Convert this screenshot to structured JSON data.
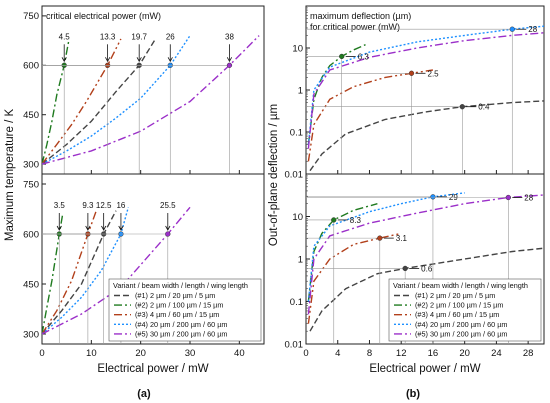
{
  "figure_labels": {
    "a": "(a)",
    "b": "(b)"
  },
  "colors": {
    "v1": "#444444",
    "v2": "#1f7a1f",
    "v3": "#b2401b",
    "v4": "#1e90ff",
    "v5": "#9b2fc9"
  },
  "legend": {
    "title": "Variant / beam width / length / wing length",
    "entries": [
      {
        "id": "v1",
        "label": "(#1)   2 µm /  20 µm /  5 µm",
        "dash": "6,3"
      },
      {
        "id": "v2",
        "label": "(#2)   2 µm / 100 µm / 15 µm",
        "dash": "8,3,2,3"
      },
      {
        "id": "v3",
        "label": "(#3)   4 µm /  60 µm / 15 µm",
        "dash": "8,3,2,3,2,3"
      },
      {
        "id": "v4",
        "label": "(#4) 20 µm / 200 µm / 60 µm",
        "dash": "2,2"
      },
      {
        "id": "v5",
        "label": "(#5) 30 µm / 200 µm / 60 µm",
        "dash": "8,3,2,3"
      }
    ]
  },
  "chart_data": [
    {
      "type": "line",
      "panel": "a-top",
      "title": "critical electrical power (mW)",
      "xlabel": "",
      "ylabel": "Maximum temperature / K",
      "xlim": [
        0,
        45
      ],
      "ylim": [
        270,
        780
      ],
      "yticks": [
        300,
        450,
        600,
        750
      ],
      "xticks": [
        0,
        10,
        20,
        30,
        40
      ],
      "series": [
        {
          "name": "(#1)",
          "x": [
            0,
            5,
            10,
            15,
            19.7,
            23
          ],
          "y": [
            300,
            360,
            430,
            520,
            600,
            680
          ]
        },
        {
          "name": "(#2)",
          "x": [
            0,
            1,
            2,
            3,
            4.5,
            5.5
          ],
          "y": [
            300,
            360,
            430,
            510,
            600,
            680
          ]
        },
        {
          "name": "(#3)",
          "x": [
            0,
            3,
            6,
            9,
            13.3,
            16
          ],
          "y": [
            300,
            360,
            420,
            490,
            600,
            680
          ]
        },
        {
          "name": "(#4)",
          "x": [
            0,
            5,
            10,
            15,
            20,
            26,
            30
          ],
          "y": [
            300,
            340,
            385,
            440,
            500,
            600,
            690
          ]
        },
        {
          "name": "(#5)",
          "x": [
            0,
            10,
            20,
            30,
            38,
            44
          ],
          "y": [
            300,
            340,
            400,
            490,
            600,
            690
          ]
        }
      ],
      "annotations": [
        {
          "series": "(#2)",
          "x": 4.5,
          "y": 600,
          "label": "4.5"
        },
        {
          "series": "(#3)",
          "x": 13.3,
          "y": 600,
          "label": "13.3"
        },
        {
          "series": "(#1)",
          "x": 19.7,
          "y": 600,
          "label": "19.7"
        },
        {
          "series": "(#4)",
          "x": 26,
          "y": 600,
          "label": "26"
        },
        {
          "series": "(#5)",
          "x": 38,
          "y": 600,
          "label": "38"
        }
      ]
    },
    {
      "type": "line",
      "panel": "a-bottom",
      "xlabel": "Electrical power / mW",
      "ylabel": "Maximum temperature / K",
      "xlim": [
        0,
        45
      ],
      "ylim": [
        270,
        780
      ],
      "yticks": [
        300,
        450,
        600,
        750
      ],
      "xticks": [
        0,
        10,
        20,
        30,
        40
      ],
      "series": [
        {
          "name": "(#1)",
          "x": [
            0,
            4,
            8,
            12.5,
            15
          ],
          "y": [
            300,
            370,
            450,
            600,
            670
          ]
        },
        {
          "name": "(#2)",
          "x": [
            0,
            1,
            2,
            3.5,
            4.2
          ],
          "y": [
            300,
            380,
            460,
            600,
            660
          ]
        },
        {
          "name": "(#3)",
          "x": [
            0,
            3,
            6,
            9.3,
            11
          ],
          "y": [
            300,
            370,
            460,
            600,
            670
          ]
        },
        {
          "name": "(#4)",
          "x": [
            0,
            4,
            8,
            12,
            16,
            17.5
          ],
          "y": [
            300,
            350,
            410,
            490,
            600,
            680
          ]
        },
        {
          "name": "(#5)",
          "x": [
            0,
            8,
            16,
            25.5,
            30
          ],
          "y": [
            300,
            360,
            440,
            600,
            680
          ]
        }
      ],
      "annotations": [
        {
          "series": "(#2)",
          "x": 3.5,
          "y": 600,
          "label": "3.5"
        },
        {
          "series": "(#3)",
          "x": 9.3,
          "y": 600,
          "label": "9.3"
        },
        {
          "series": "(#1)",
          "x": 12.5,
          "y": 600,
          "label": "12.5"
        },
        {
          "series": "(#4)",
          "x": 16,
          "y": 600,
          "label": "16"
        },
        {
          "series": "(#5)",
          "x": 25.5,
          "y": 600,
          "label": "25.5"
        }
      ]
    },
    {
      "type": "line",
      "panel": "b-top",
      "title": "maximum deflection (µm)\nfor critical power (mW)",
      "xlabel": "",
      "ylabel": "Out-of-plane deflection / µm",
      "xlim": [
        0,
        30
      ],
      "ylim": [
        0.01,
        100
      ],
      "yscale": "log",
      "yticks": [
        0.01,
        0.1,
        1,
        10
      ],
      "xticks": [
        0,
        4,
        8,
        12,
        16,
        20,
        24,
        28
      ],
      "series": [
        {
          "name": "(#1)",
          "x": [
            0.5,
            2,
            5,
            10,
            15,
            19.7,
            26,
            30
          ],
          "y": [
            0.012,
            0.03,
            0.09,
            0.2,
            0.3,
            0.4,
            0.5,
            0.55
          ]
        },
        {
          "name": "(#2)",
          "x": [
            0.3,
            1,
            2,
            3,
            4.5,
            6,
            7.5
          ],
          "y": [
            0.05,
            0.6,
            2,
            3.8,
            6.3,
            9,
            12
          ]
        },
        {
          "name": "(#3)",
          "x": [
            0.3,
            1,
            3,
            6,
            10,
            13.3,
            16
          ],
          "y": [
            0.02,
            0.15,
            0.6,
            1.2,
            2,
            2.5,
            3
          ]
        },
        {
          "name": "(#4)",
          "x": [
            0.3,
            1,
            3,
            8,
            14,
            20,
            26,
            30
          ],
          "y": [
            0.05,
            1,
            3.5,
            8,
            14,
            20,
            28,
            33
          ]
        },
        {
          "name": "(#5)",
          "x": [
            0.3,
            1,
            3,
            8,
            14,
            20,
            26,
            30
          ],
          "y": [
            0.04,
            0.8,
            3,
            6,
            10,
            15,
            20,
            23
          ]
        }
      ],
      "annotations": [
        {
          "series": "(#4)",
          "x": 26,
          "y": 28,
          "label": "28"
        },
        {
          "series": "(#2)",
          "x": 4.5,
          "y": 6.3,
          "label": "6.3"
        },
        {
          "series": "(#3)",
          "x": 13.3,
          "y": 2.5,
          "label": "2.5"
        },
        {
          "series": "(#1)",
          "x": 19.7,
          "y": 0.4,
          "label": "0.4"
        }
      ]
    },
    {
      "type": "line",
      "panel": "b-bottom",
      "xlabel": "Electrical power / mW",
      "ylabel": "Out-of-plane deflection / µm",
      "xlim": [
        0,
        30
      ],
      "ylim": [
        0.01,
        100
      ],
      "yscale": "log",
      "yticks": [
        0.01,
        0.1,
        1,
        10
      ],
      "xticks": [
        0,
        4,
        8,
        12,
        16,
        20,
        24,
        28
      ],
      "series": [
        {
          "name": "(#1)",
          "x": [
            0.5,
            2,
            5,
            9,
            12.5,
            20,
            26,
            30
          ],
          "y": [
            0.02,
            0.06,
            0.2,
            0.45,
            0.6,
            1.0,
            1.5,
            1.8
          ]
        },
        {
          "name": "(#2)",
          "x": [
            0.3,
            1,
            2,
            3.5,
            6,
            9
          ],
          "y": [
            0.1,
            1.5,
            4,
            8.3,
            14,
            20
          ]
        },
        {
          "name": "(#3)",
          "x": [
            0.3,
            1,
            3,
            6,
            9.3,
            12
          ],
          "y": [
            0.03,
            0.3,
            1,
            2.2,
            3.1,
            4
          ]
        },
        {
          "name": "(#4)",
          "x": [
            0.3,
            1,
            3,
            8,
            12,
            16,
            20
          ],
          "y": [
            0.1,
            2,
            6,
            13,
            20,
            29,
            36
          ]
        },
        {
          "name": "(#5)",
          "x": [
            0.3,
            1,
            3,
            8,
            14,
            20,
            25.5,
            30
          ],
          "y": [
            0.05,
            1,
            3.5,
            7,
            12,
            20,
            28,
            32
          ]
        }
      ],
      "annotations": [
        {
          "series": "(#4)",
          "x": 16,
          "y": 29,
          "label": "29"
        },
        {
          "series": "(#5)",
          "x": 25.5,
          "y": 28,
          "label": "28"
        },
        {
          "series": "(#2)",
          "x": 3.5,
          "y": 8.3,
          "label": "8.3"
        },
        {
          "series": "(#3)",
          "x": 9.3,
          "y": 3.1,
          "label": "3.1"
        },
        {
          "series": "(#1)",
          "x": 12.5,
          "y": 0.6,
          "label": "0.6"
        }
      ]
    }
  ]
}
